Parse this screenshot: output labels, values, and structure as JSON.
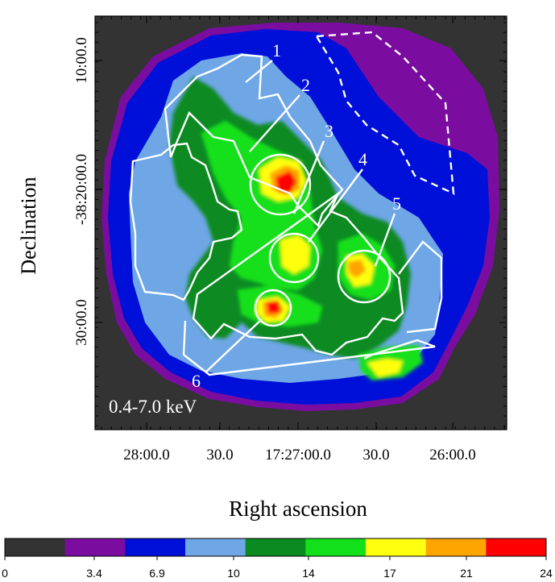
{
  "image": {
    "xlabel": "Right ascension",
    "ylabel": "Declination",
    "band_label": "0.4-7.0 keV",
    "x_ticks": [
      "28:00.0",
      "30.0",
      "17:27:00.0",
      "30.0",
      "26:00.0"
    ],
    "y_ticks": [
      "10:00.0",
      "-38:20:00.0",
      "30:00.0"
    ],
    "region_labels": [
      "1",
      "2",
      "3",
      "4",
      "5",
      "6"
    ]
  },
  "colorbar": {
    "ticks": [
      "0",
      "3.4",
      "6.9",
      "10",
      "14",
      "17",
      "21",
      "24"
    ],
    "colors": [
      "#333333",
      "#7a0da0",
      "#0010d8",
      "#6ea6e6",
      "#0a8a20",
      "#12e01a",
      "#ffff10",
      "#ffa500",
      "#ff0000"
    ]
  },
  "colors": {
    "background": "#333333",
    "rim": "#7a0da0",
    "faint": "#0010d8",
    "low": "#6ea6e6",
    "mid": "#0a8a20",
    "midhigh": "#12e01a",
    "high": "#ffff10",
    "higher": "#ffa500",
    "peak": "#ff0000",
    "overlay": "#ffffff"
  }
}
